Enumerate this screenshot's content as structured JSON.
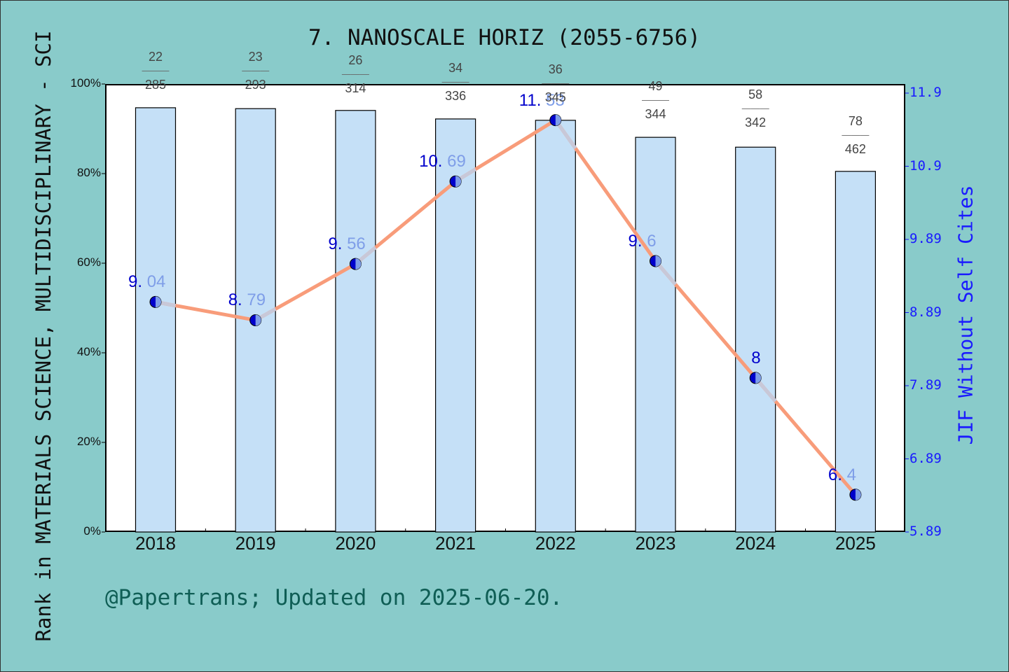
{
  "chart_data": {
    "type": "bar+line",
    "title": "7. NANOSCALE HORIZ (2055-6756)",
    "categories": [
      "2018",
      "2019",
      "2020",
      "2021",
      "2022",
      "2023",
      "2024",
      "2025"
    ],
    "series": [
      {
        "name": "Rank percentile in MATERIALS SCIENCE, MULTIDISCIPLINARY - SCI",
        "type": "bar",
        "axis": "left",
        "values": [
          94.7,
          94.5,
          94.1,
          92.2,
          91.9,
          88.1,
          85.9,
          80.5
        ],
        "rank_labels": [
          "22/285",
          "23/293",
          "26/314",
          "34/336",
          "36/345",
          "49/344",
          "58/342",
          "78/462"
        ]
      },
      {
        "name": "JIF Without Self Cites",
        "type": "line",
        "axis": "right",
        "values": [
          9.04,
          8.79,
          9.56,
          10.69,
          11.53,
          9.6,
          8,
          6.4
        ]
      }
    ],
    "ylabel": "Rank in MATERIALS SCIENCE, MULTIDISCIPLINARY - SCI",
    "y2label": "JIF Without Self Cites",
    "ylim": [
      0,
      100
    ],
    "y2lim": [
      5.89,
      11.9
    ],
    "yticks": [
      "0%",
      "20%",
      "40%",
      "60%",
      "80%",
      "100%"
    ],
    "y2ticks": [
      "5.89",
      "6.89",
      "7.89",
      "8.89",
      "9.89",
      "10.9",
      "11.9"
    ],
    "grid": false,
    "legend": "none",
    "footer": "@Papertrans; Updated on 2025-06-20."
  },
  "labels": {
    "title": "7. NANOSCALE HORIZ (2055-6756)",
    "ylabel_left": "Rank in MATERIALS SCIENCE, MULTIDISCIPLINARY - SCI",
    "ylabel_right": "JIF Without Self Cites",
    "footer": "@Papertrans; Updated on 2025-06-20."
  },
  "colors": {
    "background": "#89cbca",
    "bar_fill": "#c5e0f7",
    "line_orange": "#f89c7a",
    "line_gray": "#c8c8d8",
    "marker": "#0000cc",
    "right_axis": "#1a1aff",
    "footer": "#0f5e55"
  }
}
